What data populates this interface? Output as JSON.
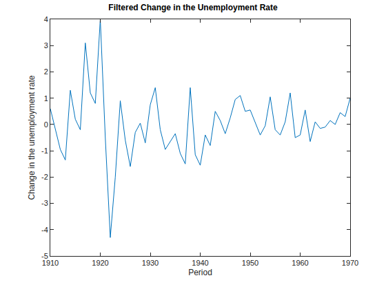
{
  "chart_data": {
    "type": "line",
    "title": "Filtered Change in the Unemployment Rate",
    "x_label": "Period",
    "y_label": "Change in the unemployment rate",
    "x": [
      1910,
      1911,
      1912,
      1913,
      1914,
      1915,
      1916,
      1917,
      1918,
      1919,
      1920,
      1921,
      1922,
      1923,
      1924,
      1925,
      1926,
      1927,
      1928,
      1929,
      1930,
      1931,
      1932,
      1933,
      1934,
      1935,
      1936,
      1937,
      1938,
      1939,
      1940,
      1941,
      1942,
      1943,
      1944,
      1945,
      1946,
      1947,
      1948,
      1949,
      1950,
      1951,
      1952,
      1953,
      1954,
      1955,
      1956,
      1957,
      1958,
      1959,
      1960,
      1961,
      1962,
      1963,
      1964,
      1965,
      1966,
      1967,
      1968,
      1969,
      1970
    ],
    "values": [
      0.6,
      -0.2,
      -0.95,
      -1.35,
      1.3,
      0.2,
      -0.2,
      3.1,
      1.2,
      0.8,
      4.0,
      -0.5,
      -4.3,
      -2.0,
      0.9,
      -0.6,
      -1.6,
      -0.3,
      0.05,
      -0.7,
      0.75,
      1.4,
      -0.2,
      -0.95,
      -0.65,
      -0.35,
      -1.1,
      -1.5,
      1.4,
      -1.15,
      -1.55,
      -0.4,
      -0.8,
      0.5,
      0.15,
      -0.35,
      0.25,
      0.95,
      1.1,
      0.5,
      0.55,
      0.1,
      -0.4,
      -0.05,
      1.05,
      -0.2,
      -0.4,
      0.1,
      1.2,
      -0.5,
      -0.4,
      0.55,
      -0.65,
      0.1,
      -0.15,
      -0.1,
      0.15,
      0.0,
      0.45,
      0.3,
      1.0
    ],
    "color": "#0072bd",
    "xlim": [
      1910,
      1970
    ],
    "ylim": [
      -5,
      4
    ],
    "xticks": [
      1910,
      1920,
      1930,
      1940,
      1950,
      1960,
      1970
    ],
    "yticks": [
      -5,
      -4,
      -3,
      -2,
      -1,
      0,
      1,
      2,
      3,
      4
    ],
    "grid": false
  }
}
